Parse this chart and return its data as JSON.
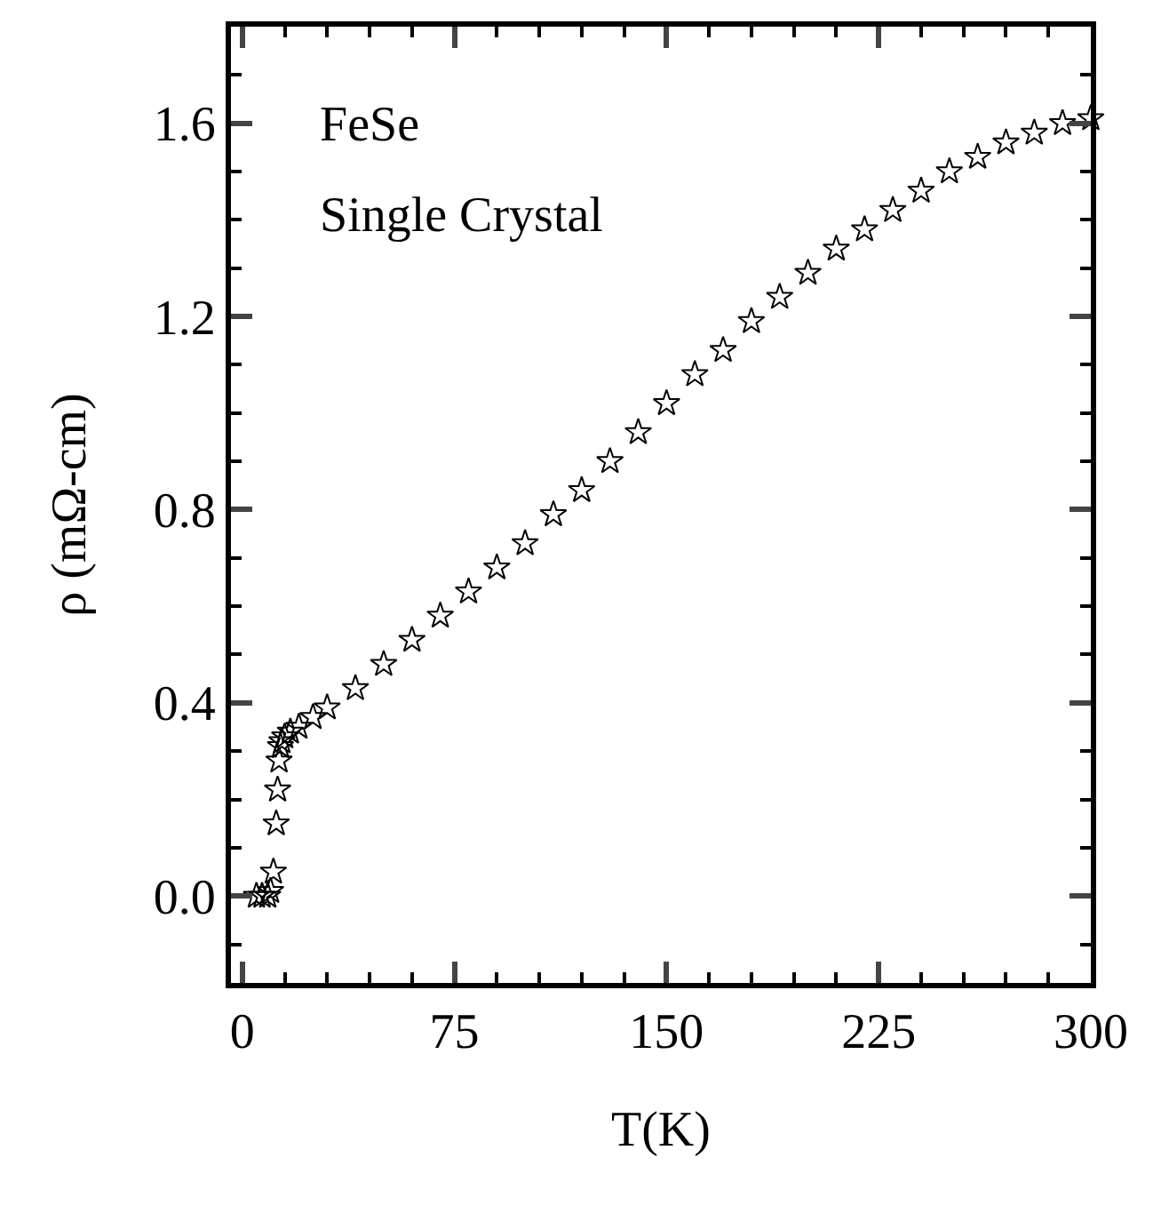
{
  "chart_data": {
    "type": "scatter",
    "xlabel": "T(K)",
    "ylabel": "ρ (mΩ-cm)",
    "annotations": [
      "FeSe",
      "Single Crystal"
    ],
    "xlim": [
      -4,
      300
    ],
    "ylim": [
      -0.18,
      1.8
    ],
    "xticks": [
      0,
      75,
      150,
      225,
      300
    ],
    "yticks": [
      {
        "value": 0,
        "label": "0.0"
      },
      0.4,
      0.8,
      1.2,
      1.6
    ],
    "marker": "star",
    "series": [
      {
        "color": "#000000",
        "x": [
          5,
          7,
          9,
          10,
          11,
          12,
          12.5,
          13,
          13.5,
          14,
          15,
          17,
          20,
          25,
          30,
          40,
          50,
          60,
          70,
          80,
          90,
          100,
          110,
          120,
          130,
          140,
          150,
          160,
          170,
          180,
          190,
          200,
          210,
          220,
          230,
          240,
          250,
          260,
          270,
          280,
          290,
          300
        ],
        "values": [
          0,
          0,
          0,
          0.01,
          0.05,
          0.15,
          0.22,
          0.28,
          0.31,
          0.32,
          0.33,
          0.34,
          0.35,
          0.37,
          0.39,
          0.43,
          0.48,
          0.53,
          0.58,
          0.63,
          0.68,
          0.73,
          0.79,
          0.84,
          0.9,
          0.96,
          1.02,
          1.08,
          1.13,
          1.19,
          1.24,
          1.29,
          1.34,
          1.38,
          1.42,
          1.46,
          1.5,
          1.53,
          1.56,
          1.58,
          1.6,
          1.61
        ]
      }
    ]
  }
}
